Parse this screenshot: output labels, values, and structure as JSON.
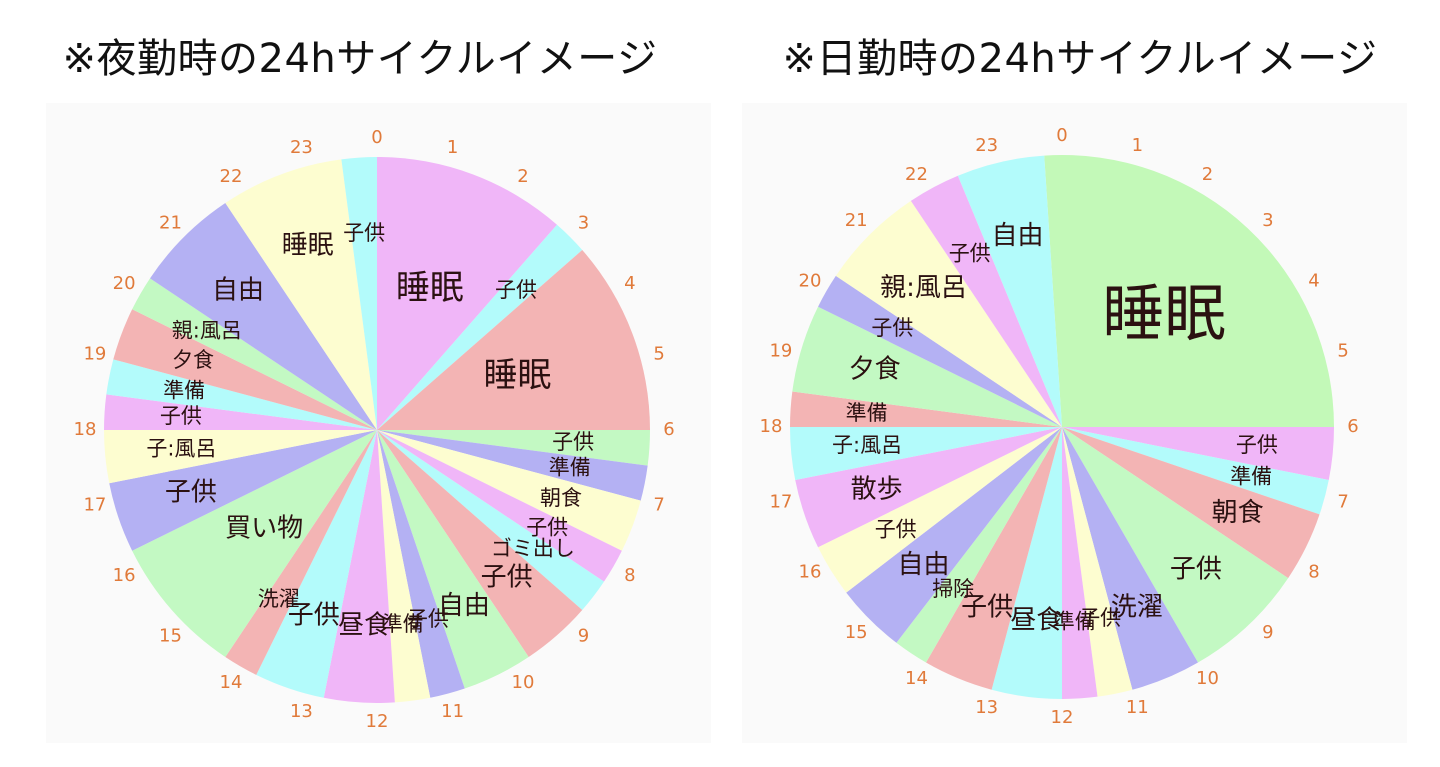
{
  "chart_data": [
    {
      "type": "pie",
      "title": "※夜勤時の24hサイクルイメージ",
      "start_angle_hour": 0,
      "hour_ticks": [
        "0",
        "1",
        "2",
        "3",
        "4",
        "5",
        "6",
        "7",
        "8",
        "9",
        "10",
        "11",
        "12",
        "13",
        "14",
        "15",
        "16",
        "17",
        "18",
        "19",
        "20",
        "21",
        "22",
        "23"
      ],
      "slices": [
        {
          "label": "睡眠",
          "start": 0,
          "end": 2.75,
          "color": "#f0b6f8"
        },
        {
          "label": "子供",
          "start": 2.75,
          "end": 3.25,
          "color": "#b3fbfb"
        },
        {
          "label": "睡眠",
          "start": 3.25,
          "end": 6,
          "color": "#f3b4b4"
        },
        {
          "label": "子供",
          "start": 6,
          "end": 6.5,
          "color": "#c3f9c3"
        },
        {
          "label": "準備",
          "start": 6.5,
          "end": 7,
          "color": "#b4b1f3"
        },
        {
          "label": "朝食",
          "start": 7,
          "end": 7.75,
          "color": "#fdfdd0"
        },
        {
          "label": "子供",
          "start": 7.75,
          "end": 8.25,
          "color": "#f0b6f8"
        },
        {
          "label": "ゴミ出し",
          "start": 8.25,
          "end": 8.75,
          "color": "#b3fbfb"
        },
        {
          "label": "子供",
          "start": 8.75,
          "end": 9.75,
          "color": "#f3b4b4"
        },
        {
          "label": "自由",
          "start": 9.75,
          "end": 10.75,
          "color": "#c3f9c3"
        },
        {
          "label": "子供",
          "start": 10.75,
          "end": 11.25,
          "color": "#b4b1f3"
        },
        {
          "label": "準備",
          "start": 11.25,
          "end": 11.75,
          "color": "#fdfdd0"
        },
        {
          "label": "昼食",
          "start": 11.75,
          "end": 12.75,
          "color": "#f0b6f8"
        },
        {
          "label": "子供",
          "start": 12.75,
          "end": 13.75,
          "color": "#b3fbfb"
        },
        {
          "label": "洗濯",
          "start": 13.75,
          "end": 14.25,
          "color": "#f3b4b4"
        },
        {
          "label": "買い物",
          "start": 14.25,
          "end": 16.25,
          "color": "#c3f9c3"
        },
        {
          "label": "子供",
          "start": 16.25,
          "end": 17.25,
          "color": "#b4b1f3"
        },
        {
          "label": "子:風呂",
          "start": 17.25,
          "end": 18,
          "color": "#fdfdd0"
        },
        {
          "label": "子供",
          "start": 18,
          "end": 18.5,
          "color": "#f0b6f8"
        },
        {
          "label": "準備",
          "start": 18.5,
          "end": 19,
          "color": "#b3fbfb"
        },
        {
          "label": "夕食",
          "start": 19,
          "end": 19.75,
          "color": "#f3b4b4"
        },
        {
          "label": "親:風呂",
          "start": 19.75,
          "end": 20.25,
          "color": "#c3f9c3"
        },
        {
          "label": "自由",
          "start": 20.25,
          "end": 21.75,
          "color": "#b4b1f3"
        },
        {
          "label": "睡眠",
          "start": 21.75,
          "end": 23.5,
          "color": "#fdfdd0"
        },
        {
          "label": "子供",
          "start": 23.5,
          "end": 24,
          "color": "#b3fbfb"
        }
      ]
    },
    {
      "type": "pie",
      "title": "※日勤時の24hサイクルイメージ",
      "start_angle_hour": 0,
      "hour_ticks": [
        "0",
        "1",
        "2",
        "3",
        "4",
        "5",
        "6",
        "7",
        "8",
        "9",
        "10",
        "11",
        "12",
        "13",
        "14",
        "15",
        "16",
        "17",
        "18",
        "19",
        "20",
        "21",
        "22",
        "23"
      ],
      "slices": [
        {
          "label": "睡眠",
          "start": 23.75,
          "end": 30,
          "color": "#c3f9b8"
        },
        {
          "label": "子供",
          "start": 6,
          "end": 6.75,
          "color": "#f0b6f8"
        },
        {
          "label": "準備",
          "start": 6.75,
          "end": 7.25,
          "color": "#b3fbfb"
        },
        {
          "label": "朝食",
          "start": 7.25,
          "end": 8.25,
          "color": "#f3b4b4"
        },
        {
          "label": "子供",
          "start": 8.25,
          "end": 10,
          "color": "#c3f9c3"
        },
        {
          "label": "洗濯",
          "start": 10,
          "end": 11,
          "color": "#b4b1f3"
        },
        {
          "label": "子供",
          "start": 11,
          "end": 11.5,
          "color": "#fdfdd0"
        },
        {
          "label": "準備",
          "start": 11.5,
          "end": 12,
          "color": "#f0b6f8"
        },
        {
          "label": "昼食",
          "start": 12,
          "end": 13,
          "color": "#b3fbfb"
        },
        {
          "label": "子供",
          "start": 13,
          "end": 14,
          "color": "#f3b4b4"
        },
        {
          "label": "掃除",
          "start": 14,
          "end": 14.5,
          "color": "#c3f9c3"
        },
        {
          "label": "自由",
          "start": 14.5,
          "end": 15.5,
          "color": "#b4b1f3"
        },
        {
          "label": "子供",
          "start": 15.5,
          "end": 16.25,
          "color": "#fdfdd0"
        },
        {
          "label": "散歩",
          "start": 16.25,
          "end": 17.25,
          "color": "#f0b6f8"
        },
        {
          "label": "子:風呂",
          "start": 17.25,
          "end": 18,
          "color": "#b3fbfb"
        },
        {
          "label": "準備",
          "start": 18,
          "end": 18.5,
          "color": "#f3b4b4"
        },
        {
          "label": "夕食",
          "start": 18.5,
          "end": 19.75,
          "color": "#c3f9c3"
        },
        {
          "label": "子供",
          "start": 19.75,
          "end": 20.25,
          "color": "#b4b1f3"
        },
        {
          "label": "親:風呂",
          "start": 20.25,
          "end": 21.75,
          "color": "#fdfdd0"
        },
        {
          "label": "子供",
          "start": 21.75,
          "end": 22.5,
          "color": "#f0b6f8"
        },
        {
          "label": "自由",
          "start": 22.5,
          "end": 23.75,
          "color": "#b3fbfb"
        }
      ]
    }
  ]
}
